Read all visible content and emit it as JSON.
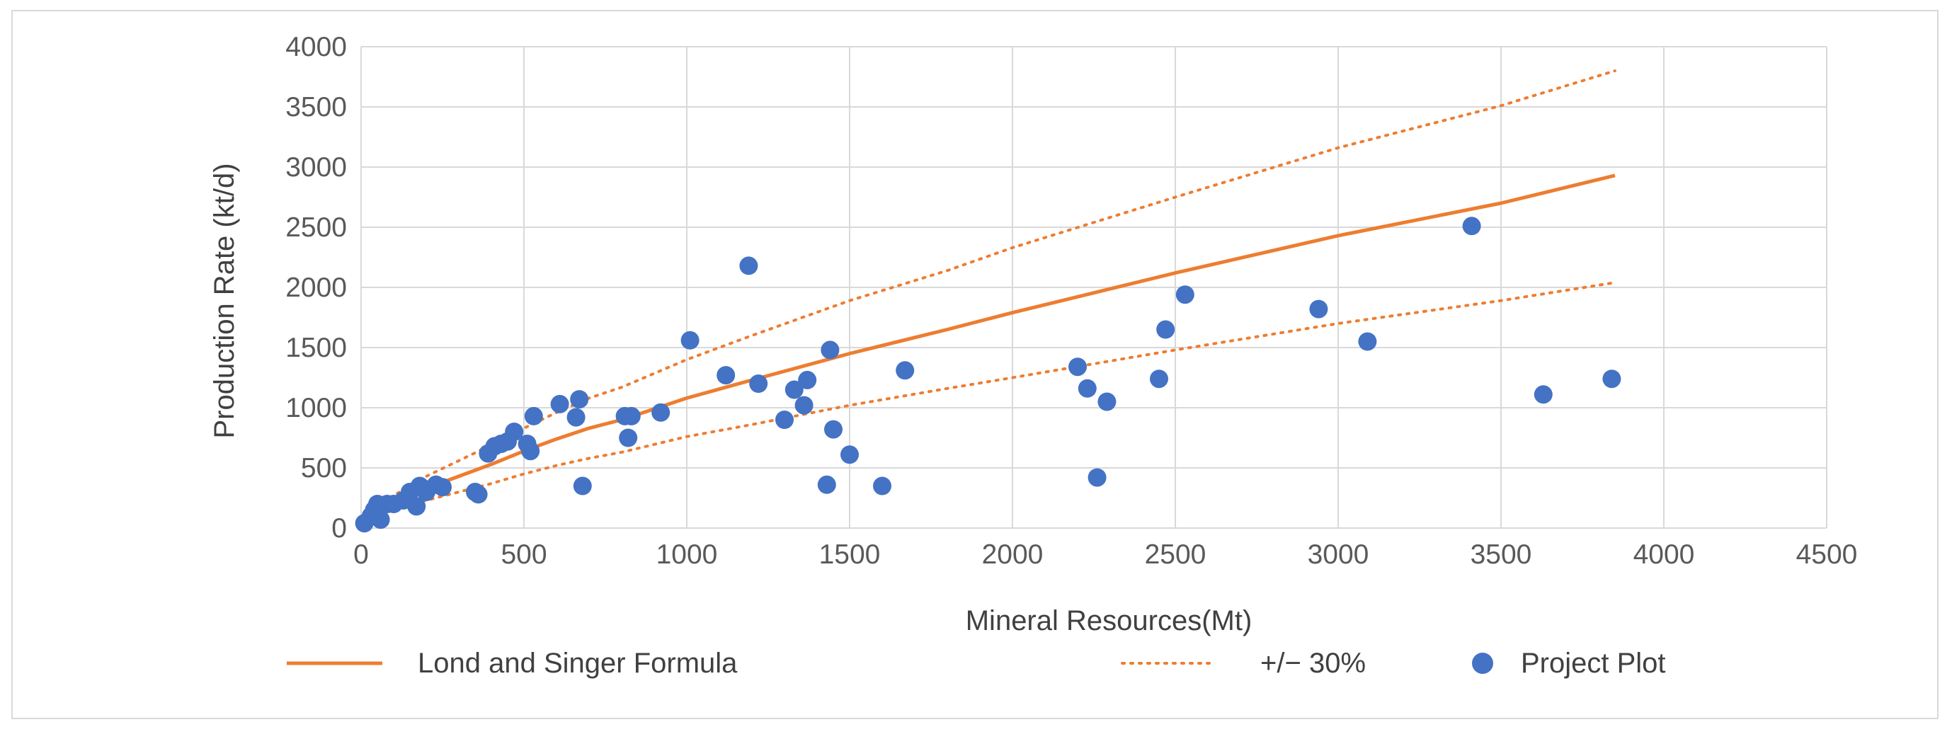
{
  "chart_data": {
    "type": "scatter",
    "title": "",
    "xlabel": "Mineral Resources(Mt)",
    "ylabel": "Production Rate (kt/d)",
    "xlim": [
      0,
      4500
    ],
    "ylim": [
      0,
      4000
    ],
    "x_ticks": [
      0,
      500,
      1000,
      1500,
      2000,
      2500,
      3000,
      3500,
      4000,
      4500
    ],
    "y_ticks": [
      0,
      500,
      1000,
      1500,
      2000,
      2500,
      3000,
      3500,
      4000
    ],
    "grid": true,
    "legend_position": "bottom",
    "colors": {
      "formula": "#ed7d31",
      "points": "#4472c4",
      "grid": "#d9d9d9"
    },
    "series": [
      {
        "name": "Lond and Singer  Formula",
        "kind": "line",
        "style": "solid",
        "x": [
          0,
          50,
          100,
          200,
          300,
          400,
          500,
          600,
          700,
          800,
          1000,
          1200,
          1500,
          1800,
          2000,
          2500,
          3000,
          3500,
          3850
        ],
        "y": [
          0,
          140,
          210,
          330,
          430,
          530,
          640,
          740,
          830,
          900,
          1080,
          1230,
          1450,
          1650,
          1790,
          2120,
          2430,
          2700,
          2930
        ]
      },
      {
        "name": "+/− 30%",
        "kind": "line",
        "style": "dotted",
        "bounds": [
          {
            "label": "upper",
            "x": [
              0,
              50,
              100,
              200,
              300,
              400,
              500,
              600,
              700,
              800,
              1000,
              1200,
              1500,
              1800,
              2000,
              2500,
              3000,
              3500,
              3850
            ],
            "y": [
              0,
              180,
              270,
              430,
              560,
              690,
              830,
              960,
              1080,
              1170,
              1400,
              1600,
              1890,
              2140,
              2330,
              2750,
              3160,
              3510,
              3800
            ]
          },
          {
            "label": "lower",
            "x": [
              0,
              50,
              100,
              200,
              300,
              400,
              500,
              600,
              700,
              800,
              1000,
              1200,
              1500,
              1800,
              2000,
              2500,
              3000,
              3500,
              3850
            ],
            "y": [
              0,
              100,
              150,
              230,
              300,
              370,
              450,
              520,
              580,
              630,
              760,
              860,
              1020,
              1160,
              1250,
              1480,
              1700,
              1890,
              2040
            ]
          }
        ]
      },
      {
        "name": "Project Plot",
        "kind": "scatter",
        "x": [
          10,
          30,
          40,
          50,
          60,
          80,
          100,
          130,
          150,
          170,
          180,
          190,
          200,
          230,
          250,
          350,
          360,
          390,
          410,
          430,
          450,
          470,
          510,
          520,
          530,
          610,
          660,
          670,
          680,
          810,
          820,
          830,
          920,
          1010,
          1120,
          1190,
          1220,
          1300,
          1330,
          1360,
          1370,
          1430,
          1440,
          1450,
          1500,
          1600,
          1670,
          2200,
          2230,
          2260,
          2290,
          2450,
          2470,
          2530,
          2940,
          3090,
          3410,
          3630,
          3840
        ],
        "y": [
          40,
          100,
          150,
          200,
          70,
          200,
          200,
          230,
          300,
          180,
          350,
          330,
          300,
          360,
          340,
          300,
          280,
          620,
          680,
          700,
          720,
          800,
          700,
          640,
          930,
          1030,
          920,
          1070,
          350,
          930,
          750,
          930,
          960,
          1560,
          1270,
          2180,
          1200,
          900,
          1150,
          1020,
          1230,
          360,
          1480,
          820,
          610,
          350,
          1310,
          1340,
          1160,
          420,
          1050,
          1240,
          1650,
          1940,
          1820,
          1550,
          2510,
          1110,
          1240
        ]
      }
    ]
  }
}
